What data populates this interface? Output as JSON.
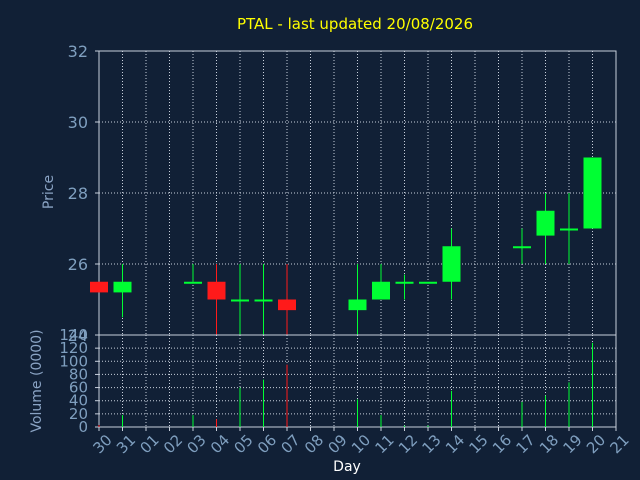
{
  "chart_data": [
    {
      "type": "candlestick",
      "title": "PTAL - last updated 20/08/2026",
      "ylabel": "Price",
      "ylim": [
        24,
        32
      ],
      "yticks": [
        24,
        26,
        28,
        30,
        32
      ],
      "grid": true,
      "categories": [
        "30",
        "31",
        "01",
        "02",
        "03",
        "04",
        "05",
        "06",
        "07",
        "08",
        "09",
        "10",
        "11",
        "12",
        "13",
        "14",
        "15",
        "16",
        "17",
        "18",
        "19",
        "20",
        "21"
      ],
      "candles": [
        {
          "day": "30",
          "open": 25.5,
          "high": 25.5,
          "low": 25.2,
          "close": 25.2
        },
        {
          "day": "31",
          "open": 25.2,
          "high": 26.0,
          "low": 24.5,
          "close": 25.5
        },
        {
          "day": "03",
          "open": 25.5,
          "high": 26.0,
          "low": 25.5,
          "close": 25.5
        },
        {
          "day": "04",
          "open": 25.5,
          "high": 26.0,
          "low": 24.0,
          "close": 25.0
        },
        {
          "day": "05",
          "open": 25.0,
          "high": 26.0,
          "low": 24.0,
          "close": 25.0
        },
        {
          "day": "06",
          "open": 25.0,
          "high": 26.0,
          "low": 24.0,
          "close": 25.0
        },
        {
          "day": "07",
          "open": 25.0,
          "high": 26.0,
          "low": 24.0,
          "close": 24.7
        },
        {
          "day": "10",
          "open": 24.7,
          "high": 26.0,
          "low": 24.0,
          "close": 25.0
        },
        {
          "day": "11",
          "open": 25.0,
          "high": 26.0,
          "low": 25.0,
          "close": 25.5
        },
        {
          "day": "12",
          "open": 25.5,
          "high": 25.7,
          "low": 25.0,
          "close": 25.5
        },
        {
          "day": "13",
          "open": 25.5,
          "high": 25.5,
          "low": 25.5,
          "close": 25.5
        },
        {
          "day": "14",
          "open": 25.5,
          "high": 27.0,
          "low": 25.0,
          "close": 26.5
        },
        {
          "day": "17",
          "open": 26.5,
          "high": 27.0,
          "low": 26.0,
          "close": 26.5
        },
        {
          "day": "18",
          "open": 26.8,
          "high": 28.0,
          "low": 26.0,
          "close": 27.5
        },
        {
          "day": "19",
          "open": 27.0,
          "high": 28.0,
          "low": 26.0,
          "close": 27.0
        },
        {
          "day": "20",
          "open": 27.0,
          "high": 29.0,
          "low": 27.0,
          "close": 29.0
        }
      ]
    },
    {
      "type": "bar",
      "xlabel": "Day",
      "ylabel": "Volume (0000)",
      "ylim": [
        0,
        140
      ],
      "yticks": [
        0,
        20,
        40,
        60,
        80,
        100,
        120,
        140
      ],
      "grid": true,
      "categories": [
        "30",
        "31",
        "01",
        "02",
        "03",
        "04",
        "05",
        "06",
        "07",
        "08",
        "09",
        "10",
        "11",
        "12",
        "13",
        "14",
        "15",
        "16",
        "17",
        "18",
        "19",
        "20",
        "21"
      ],
      "values": [
        {
          "day": "30",
          "value": 3
        },
        {
          "day": "31",
          "value": 18
        },
        {
          "day": "03",
          "value": 18
        },
        {
          "day": "04",
          "value": 12
        },
        {
          "day": "05",
          "value": 60
        },
        {
          "day": "06",
          "value": 72
        },
        {
          "day": "07",
          "value": 95
        },
        {
          "day": "10",
          "value": 42
        },
        {
          "day": "11",
          "value": 18
        },
        {
          "day": "12",
          "value": 2
        },
        {
          "day": "13",
          "value": 2
        },
        {
          "day": "14",
          "value": 55
        },
        {
          "day": "17",
          "value": 38
        },
        {
          "day": "18",
          "value": 48
        },
        {
          "day": "19",
          "value": 68
        },
        {
          "day": "20",
          "value": 128
        }
      ]
    }
  ],
  "colors": {
    "background": "#112036",
    "title": "#ffff00",
    "axis_text": "#7f9fbf",
    "label_text": "#8aa3c4",
    "grid": "#c8d0dc",
    "up": "#00ff33",
    "down": "#ff1a1a"
  }
}
